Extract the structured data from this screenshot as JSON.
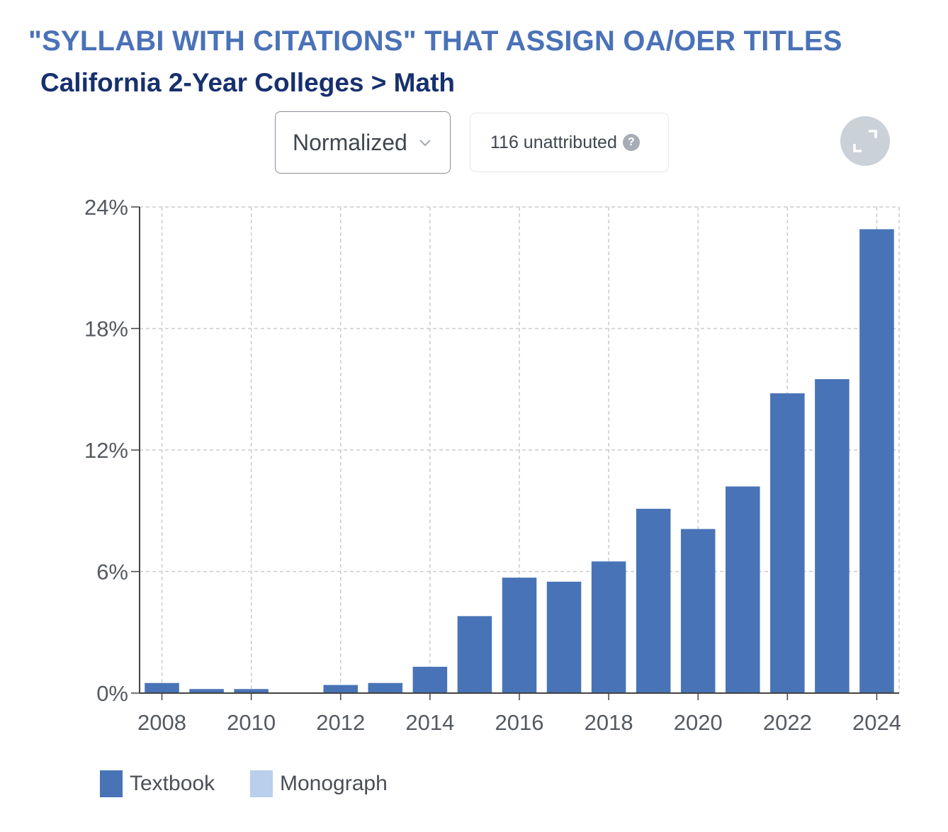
{
  "header": {
    "title": "\"SYLLABI WITH CITATIONS\" THAT ASSIGN OA/OER TITLES",
    "subtitle": "California 2-Year Colleges > Math"
  },
  "controls": {
    "mode_label": "Normalized",
    "unattributed_label": "116 unattributed",
    "help_glyph": "?"
  },
  "icons": {
    "dropdown": "chevron-down-icon",
    "help": "question-circle-icon",
    "expand": "expand-icon"
  },
  "colors": {
    "title": "#4a72b8",
    "subtitle": "#17306e",
    "textbook": "#4874b7",
    "monograph": "#b9cfec",
    "grid": "#cccccc",
    "axis": "#444444"
  },
  "chart_data": {
    "type": "bar",
    "x": [
      2008,
      2009,
      2010,
      2011,
      2012,
      2013,
      2014,
      2015,
      2016,
      2017,
      2018,
      2019,
      2020,
      2021,
      2022,
      2023,
      2024
    ],
    "series": [
      {
        "name": "Textbook",
        "values": [
          0.5,
          0.2,
          0.2,
          0,
          0.4,
          0.5,
          1.3,
          3.8,
          5.7,
          5.5,
          6.5,
          9.1,
          8.1,
          10.2,
          14.8,
          15.5,
          22.9
        ]
      },
      {
        "name": "Monograph",
        "values": [
          0,
          0,
          0,
          0,
          0,
          0,
          0,
          0,
          0,
          0,
          0,
          0,
          0,
          0,
          0,
          0,
          0
        ]
      }
    ],
    "xticks": [
      2008,
      2010,
      2012,
      2014,
      2016,
      2018,
      2020,
      2022,
      2024
    ],
    "yticks": [
      0,
      6,
      12,
      18,
      24
    ],
    "ytick_suffix": "%",
    "ylim": [
      0,
      24
    ],
    "grid": true,
    "legend_position": "bottom-left"
  }
}
